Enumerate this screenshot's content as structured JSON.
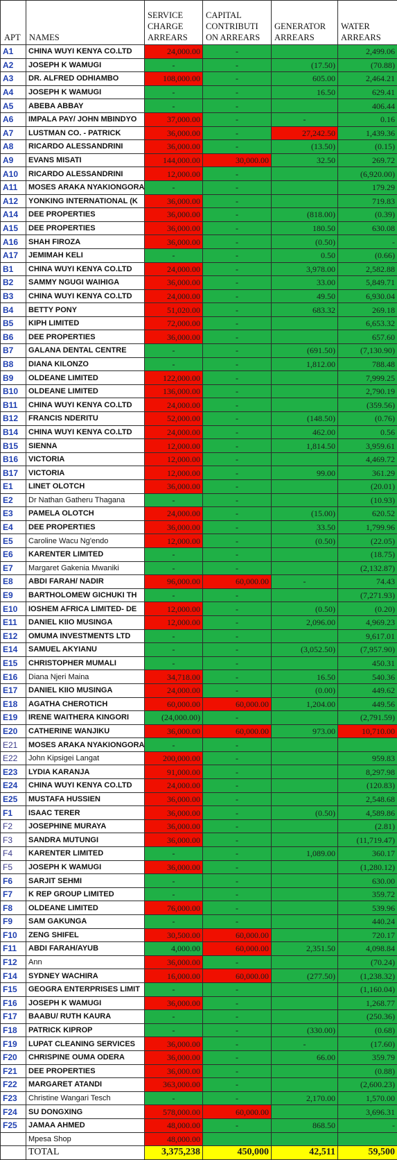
{
  "headers": {
    "apt": "APT",
    "names": "NAMES",
    "service": "SERVICE CHARGE ARREARS",
    "capital": "CAPITAL CONTRIBUTI ON ARREARS",
    "generator": "GENERATOR ARREARS",
    "water": "WATER ARREARS"
  },
  "colors": {
    "green": "#1fb046",
    "red": "#f00f00",
    "yellow": "#ffff00"
  },
  "rows": [
    {
      "apt": "A1",
      "name": "CHINA WUYI  KENYA CO.LTD",
      "sc": "24,000.00",
      "scc": "r",
      "cc": "-",
      "ccc": "g",
      "gen": "",
      "genc": "g",
      "w": "2,499.06",
      "wc": "g"
    },
    {
      "apt": "A2",
      "name": "JOSEPH K WAMUGI",
      "sc": "-",
      "scc": "g",
      "cc": "-",
      "ccc": "g",
      "gen": "(17.50)",
      "genc": "g",
      "w": "(70.88)",
      "wc": "g"
    },
    {
      "apt": "A3",
      "name": "DR. ALFRED ODHIAMBO",
      "sc": "108,000.00",
      "scc": "r",
      "cc": "-",
      "ccc": "g",
      "gen": "605.00",
      "genc": "g",
      "w": "2,464.21",
      "wc": "g"
    },
    {
      "apt": "A4",
      "name": "JOSEPH K WAMUGI",
      "sc": "-",
      "scc": "g",
      "cc": "-",
      "ccc": "g",
      "gen": "16.50",
      "genc": "g",
      "w": "629.41",
      "wc": "g"
    },
    {
      "apt": "A5",
      "name": "ABEBA ABBAY",
      "sc": "-",
      "scc": "g",
      "cc": "-",
      "ccc": "g",
      "gen": "",
      "genc": "g",
      "w": "406.44",
      "wc": "g"
    },
    {
      "apt": "A6",
      "name": "IMPALA PAY/ JOHN MBINDYO",
      "sc": "37,000.00",
      "scc": "r",
      "cc": "-",
      "ccc": "g",
      "gen": "-",
      "genc": "g",
      "w": "0.16",
      "wc": "g"
    },
    {
      "apt": "A7",
      "name": "LUSTMAN CO. - PATRICK",
      "sc": "36,000.00",
      "scc": "r",
      "cc": "-",
      "ccc": "g",
      "gen": "27,242.50",
      "genc": "r",
      "w": "1,439.36",
      "wc": "g"
    },
    {
      "apt": "A8",
      "name": "RICARDO ALESSANDRINI",
      "sc": "36,000.00",
      "scc": "r",
      "cc": "-",
      "ccc": "g",
      "gen": "(13.50)",
      "genc": "g",
      "w": "(0.15)",
      "wc": "g"
    },
    {
      "apt": "A9",
      "name": "EVANS MISATI",
      "sc": "144,000.00",
      "scc": "r",
      "cc": "30,000.00",
      "ccc": "r",
      "gen": "32.50",
      "genc": "g",
      "w": "269.72",
      "wc": "g"
    },
    {
      "apt": "A10",
      "name": "RICARDO ALESSANDRINI",
      "sc": "12,000.00",
      "scc": "r",
      "cc": "-",
      "ccc": "g",
      "gen": "",
      "genc": "g",
      "w": "(6,920.00)",
      "wc": "g"
    },
    {
      "apt": "A11",
      "name": "MOSES ARAKA NYAKIONGORA",
      "sc": "-",
      "scc": "g",
      "cc": "-",
      "ccc": "g",
      "gen": "",
      "genc": "g",
      "w": "179.29",
      "wc": "g"
    },
    {
      "apt": "A12",
      "name": "YONKING INTERNATIONAL (K",
      "sc": "36,000.00",
      "scc": "r",
      "cc": "-",
      "ccc": "g",
      "gen": "",
      "genc": "g",
      "w": "719.83",
      "wc": "g"
    },
    {
      "apt": "A14",
      "name": "DEE PROPERTIES",
      "sc": "36,000.00",
      "scc": "r",
      "cc": "-",
      "ccc": "g",
      "gen": "(818.00)",
      "genc": "g",
      "w": "(0.39)",
      "wc": "g"
    },
    {
      "apt": "A15",
      "name": "DEE PROPERTIES",
      "sc": "36,000.00",
      "scc": "r",
      "cc": "-",
      "ccc": "g",
      "gen": "180.50",
      "genc": "g",
      "w": "630.08",
      "wc": "g"
    },
    {
      "apt": "A16",
      "name": "SHAH FIROZA",
      "sc": "36,000.00",
      "scc": "r",
      "cc": "-",
      "ccc": "g",
      "gen": "(0.50)",
      "genc": "g",
      "w": "-",
      "wc": "g"
    },
    {
      "apt": "A17",
      "name": "JEMIMAH KELI",
      "sc": "-",
      "scc": "g",
      "cc": "-",
      "ccc": "g",
      "gen": "0.50",
      "genc": "g",
      "w": "(0.66)",
      "wc": "g"
    },
    {
      "apt": "B1",
      "name": "CHINA WUYI  KENYA CO.LTD",
      "sc": "24,000.00",
      "scc": "r",
      "cc": "-",
      "ccc": "g",
      "gen": "3,978.00",
      "genc": "g",
      "w": "2,582.88",
      "wc": "g"
    },
    {
      "apt": "B2",
      "name": "SAMMY NGUGI WAIHIGA",
      "sc": "36,000.00",
      "scc": "r",
      "cc": "-",
      "ccc": "g",
      "gen": "33.00",
      "genc": "g",
      "w": "5,849.71",
      "wc": "g"
    },
    {
      "apt": "B3",
      "name": "CHINA WUYI  KENYA CO.LTD",
      "sc": "24,000.00",
      "scc": "r",
      "cc": "-",
      "ccc": "g",
      "gen": "49.50",
      "genc": "g",
      "w": "6,930.04",
      "wc": "g"
    },
    {
      "apt": "B4",
      "name": "BETTY PONY",
      "sc": "51,020.00",
      "scc": "r",
      "cc": "-",
      "ccc": "g",
      "gen": "683.32",
      "genc": "g",
      "w": "269.18",
      "wc": "g"
    },
    {
      "apt": "B5",
      "name": "KIPH LIMITED",
      "sc": "72,000.00",
      "scc": "r",
      "cc": "-",
      "ccc": "g",
      "gen": "",
      "genc": "g",
      "w": "6,653.32",
      "wc": "g"
    },
    {
      "apt": "B6",
      "name": "DEE PROPERTIES",
      "sc": "36,000.00",
      "scc": "r",
      "cc": "-",
      "ccc": "g",
      "gen": "",
      "genc": "g",
      "w": "657.60",
      "wc": "g"
    },
    {
      "apt": "B7",
      "name": "GALANA DENTAL CENTRE",
      "sc": "-",
      "scc": "g",
      "cc": "-",
      "ccc": "g",
      "gen": "(691.50)",
      "genc": "g",
      "w": "(7,130.90)",
      "wc": "g"
    },
    {
      "apt": "B8",
      "name": "DIANA KILONZO",
      "sc": "-",
      "scc": "g",
      "cc": "-",
      "ccc": "g",
      "gen": "1,812.00",
      "genc": "g",
      "w": "788.48",
      "wc": "g"
    },
    {
      "apt": "B9",
      "name": "OLDEANE LIMITED",
      "sc": "122,000.00",
      "scc": "r",
      "cc": "-",
      "ccc": "g",
      "gen": "",
      "genc": "g",
      "w": "7,999.25",
      "wc": "g"
    },
    {
      "apt": "B10",
      "name": "OLDEANE LIMITED",
      "sc": "136,000.00",
      "scc": "r",
      "cc": "-",
      "ccc": "g",
      "gen": "",
      "genc": "g",
      "w": "2,790.19",
      "wc": "g"
    },
    {
      "apt": "B11",
      "name": "CHINA WUYI  KENYA CO.LTD",
      "sc": "24,000.00",
      "scc": "r",
      "cc": "-",
      "ccc": "g",
      "gen": "",
      "genc": "g",
      "w": "(359.56)",
      "wc": "g"
    },
    {
      "apt": "B12",
      "name": "FRANCIS NDERITU",
      "sc": "52,000.00",
      "scc": "r",
      "cc": "-",
      "ccc": "g",
      "gen": "(148.50)",
      "genc": "g",
      "w": "(0.76)",
      "wc": "g"
    },
    {
      "apt": "B14",
      "name": "CHINA WUYI  KENYA CO.LTD",
      "sc": "24,000.00",
      "scc": "r",
      "cc": "-",
      "ccc": "g",
      "gen": "462.00",
      "genc": "g",
      "w": "0.56",
      "wc": "g"
    },
    {
      "apt": "B15",
      "name": "SIENNA",
      "sc": "12,000.00",
      "scc": "r",
      "cc": "-",
      "ccc": "g",
      "gen": "1,814.50",
      "genc": "g",
      "w": "3,959.61",
      "wc": "g"
    },
    {
      "apt": "B16",
      "name": "VICTORIA",
      "sc": "12,000.00",
      "scc": "r",
      "cc": "-",
      "ccc": "g",
      "gen": "",
      "genc": "g",
      "w": "4,469.72",
      "wc": "g"
    },
    {
      "apt": "B17",
      "name": "VICTORIA",
      "sc": "12,000.00",
      "scc": "r",
      "cc": "-",
      "ccc": "g",
      "gen": "99.00",
      "genc": "g",
      "w": "361.29",
      "wc": "g"
    },
    {
      "apt": "E1",
      "name": "LINET OLOTCH",
      "sc": "36,000.00",
      "scc": "r",
      "cc": "-",
      "ccc": "g",
      "gen": "",
      "genc": "g",
      "w": "(20.01)",
      "wc": "g"
    },
    {
      "apt": "E2",
      "name": "Dr Nathan Gatheru Thagana",
      "sc": "-",
      "scc": "g",
      "cc": "-",
      "ccc": "g",
      "gen": "",
      "genc": "g",
      "w": "(10.93)",
      "wc": "g"
    },
    {
      "apt": "E3",
      "name": "PAMELA OLOTCH",
      "sc": "24,000.00",
      "scc": "r",
      "cc": "-",
      "ccc": "g",
      "gen": "(15.00)",
      "genc": "g",
      "w": "620.52",
      "wc": "g"
    },
    {
      "apt": "E4",
      "name": "DEE PROPERTIES",
      "sc": "36,000.00",
      "scc": "r",
      "cc": "-",
      "ccc": "g",
      "gen": "33.50",
      "genc": "g",
      "w": "1,799.96",
      "wc": "g"
    },
    {
      "apt": "E5",
      "name": "Caroline Wacu Ng'endo",
      "sc": "12,000.00",
      "scc": "r",
      "cc": "-",
      "ccc": "g",
      "gen": "(0.50)",
      "genc": "g",
      "w": "(22.05)",
      "wc": "g"
    },
    {
      "apt": "E6",
      "name": "KARENTER LIMITED",
      "sc": "-",
      "scc": "g",
      "cc": "-",
      "ccc": "g",
      "gen": "",
      "genc": "g",
      "w": "(18.75)",
      "wc": "g"
    },
    {
      "apt": "E7",
      "name": "Margaret Gakenia Mwaniki",
      "sc": "-",
      "scc": "g",
      "cc": "-",
      "ccc": "g",
      "gen": "",
      "genc": "g",
      "w": "(2,132.87)",
      "wc": "g"
    },
    {
      "apt": "E8",
      "name": "ABDI FARAH/ NADIR",
      "sc": "96,000.00",
      "scc": "r",
      "cc": "60,000.00",
      "ccc": "r",
      "gen": "-",
      "genc": "g",
      "w": "74.43",
      "wc": "g"
    },
    {
      "apt": "E9",
      "name": "BARTHOLOMEW GICHUKI TH",
      "sc": "-",
      "scc": "g",
      "cc": "-",
      "ccc": "g",
      "gen": "",
      "genc": "g",
      "w": "(7,271.93)",
      "wc": "g"
    },
    {
      "apt": "E10",
      "name": "IOSHEM AFRICA LIMITED- DE",
      "sc": "12,000.00",
      "scc": "r",
      "cc": "-",
      "ccc": "g",
      "gen": "(0.50)",
      "genc": "g",
      "w": "(0.20)",
      "wc": "g"
    },
    {
      "apt": "E11",
      "name": "DANIEL KIIO MUSINGA",
      "sc": "12,000.00",
      "scc": "r",
      "cc": "-",
      "ccc": "g",
      "gen": "2,096.00",
      "genc": "g",
      "w": "4,969.23",
      "wc": "g"
    },
    {
      "apt": "E12",
      "name": "OMUMA INVESTMENTS LTD",
      "sc": "-",
      "scc": "g",
      "cc": "-",
      "ccc": "g",
      "gen": "",
      "genc": "g",
      "w": "9,617.01",
      "wc": "g"
    },
    {
      "apt": "E14",
      "name": "SAMUEL AKYIANU",
      "sc": "-",
      "scc": "g",
      "cc": "-",
      "ccc": "g",
      "gen": "(3,052.50)",
      "genc": "g",
      "w": "(7,957.90)",
      "wc": "g"
    },
    {
      "apt": "E15",
      "name": "CHRISTOPHER MUMALI",
      "sc": "-",
      "scc": "g",
      "cc": "-",
      "ccc": "g",
      "gen": "",
      "genc": "g",
      "w": "450.31",
      "wc": "g"
    },
    {
      "apt": "E16",
      "name": "Diana Njeri Maina",
      "sc": "34,718.00",
      "scc": "r",
      "cc": "-",
      "ccc": "g",
      "gen": "16.50",
      "genc": "g",
      "w": "540.36",
      "wc": "g"
    },
    {
      "apt": "E17",
      "name": "DANIEL KIIO MUSINGA",
      "sc": "24,000.00",
      "scc": "r",
      "cc": "-",
      "ccc": "g",
      "gen": "(0.00)",
      "genc": "g",
      "w": "449.62",
      "wc": "g"
    },
    {
      "apt": "E18",
      "name": "AGATHA CHEROTICH",
      "sc": "60,000.00",
      "scc": "r",
      "cc": "60,000.00",
      "ccc": "r",
      "gen": "1,204.00",
      "genc": "g",
      "w": "449.56",
      "wc": "g"
    },
    {
      "apt": "E19",
      "name": "IRENE WAITHERA KINGORI",
      "sc": "(24,000.00)",
      "scc": "g",
      "cc": "-",
      "ccc": "g",
      "gen": "",
      "genc": "g",
      "w": "(2,791.59)",
      "wc": "g"
    },
    {
      "apt": "E20",
      "name": "CATHERINE WANJIKU",
      "sc": "36,000.00",
      "scc": "r",
      "cc": "60,000.00",
      "ccc": "r",
      "gen": "973.00",
      "genc": "g",
      "w": "10,710.00",
      "wc": "r"
    },
    {
      "apt": "E21",
      "name": "MOSES ARAKA NYAKIONGORA",
      "sc": "-",
      "scc": "g",
      "cc": "-",
      "ccc": "g",
      "gen": "",
      "genc": "g",
      "w": "",
      "wc": "g",
      "plainApt": true
    },
    {
      "apt": "E22",
      "name": "John Kipsigei Langat",
      "sc": "200,000.00",
      "scc": "r",
      "cc": "-",
      "ccc": "g",
      "gen": "",
      "genc": "g",
      "w": "959.83",
      "wc": "g",
      "plainApt": true
    },
    {
      "apt": "E23",
      "name": "LYDIA KARANJA",
      "sc": "91,000.00",
      "scc": "r",
      "cc": "-",
      "ccc": "g",
      "gen": "",
      "genc": "g",
      "w": "8,297.98",
      "wc": "g"
    },
    {
      "apt": "E24",
      "name": "CHINA WUYI  KENYA CO.LTD",
      "sc": "24,000.00",
      "scc": "r",
      "cc": "-",
      "ccc": "g",
      "gen": "",
      "genc": "g",
      "w": "(120.83)",
      "wc": "g"
    },
    {
      "apt": "E25",
      "name": "MUSTAFA HUSSIEN",
      "sc": "36,000.00",
      "scc": "r",
      "cc": "-",
      "ccc": "g",
      "gen": "",
      "genc": "g",
      "w": "2,548.68",
      "wc": "g"
    },
    {
      "apt": "F1",
      "name": "ISAAC TERER",
      "sc": "36,000.00",
      "scc": "r",
      "cc": "-",
      "ccc": "g",
      "gen": "(0.50)",
      "genc": "g",
      "w": "4,589.86",
      "wc": "g"
    },
    {
      "apt": "F2",
      "name": "JOSEPHINE MURAYA",
      "sc": "36,000.00",
      "scc": "r",
      "cc": "-",
      "ccc": "g",
      "gen": "",
      "genc": "g",
      "w": "(2.81)",
      "wc": "g",
      "plainApt": true
    },
    {
      "apt": "F3",
      "name": "SANDRA MUTUNGI",
      "sc": "36,000.00",
      "scc": "r",
      "cc": "-",
      "ccc": "g",
      "gen": "",
      "genc": "g",
      "w": "(11,719.47)",
      "wc": "g",
      "plainApt": true
    },
    {
      "apt": "F4",
      "name": "KARENTER LIMITED",
      "sc": "-",
      "scc": "g",
      "cc": "-",
      "ccc": "g",
      "gen": "1,089.00",
      "genc": "g",
      "w": "360.17",
      "wc": "g",
      "plainApt": true
    },
    {
      "apt": "F5",
      "name": "JOSEPH K WAMUGI",
      "sc": "36,000.00",
      "scc": "r",
      "cc": "-",
      "ccc": "g",
      "gen": "",
      "genc": "g",
      "w": "(1,280.12)",
      "wc": "g",
      "plainApt": true
    },
    {
      "apt": "F6",
      "name": "SARJIT SEHMI",
      "sc": "-",
      "scc": "g",
      "cc": "-",
      "ccc": "g",
      "gen": "",
      "genc": "g",
      "w": "630.00",
      "wc": "g"
    },
    {
      "apt": "F7",
      "name": "K REP GROUP LIMITED",
      "sc": "-",
      "scc": "g",
      "cc": "-",
      "ccc": "g",
      "gen": "",
      "genc": "g",
      "w": "359.72",
      "wc": "g"
    },
    {
      "apt": "F8",
      "name": "OLDEANE LIMITED",
      "sc": "76,000.00",
      "scc": "r",
      "cc": "-",
      "ccc": "g",
      "gen": "",
      "genc": "g",
      "w": "539.96",
      "wc": "g"
    },
    {
      "apt": "F9",
      "name": "SAM GAKUNGA",
      "sc": "-",
      "scc": "g",
      "cc": "-",
      "ccc": "g",
      "gen": "",
      "genc": "g",
      "w": "440.24",
      "wc": "g"
    },
    {
      "apt": "F10",
      "name": "ZENG SHIFEL",
      "sc": "30,500.00",
      "scc": "r",
      "cc": "60,000.00",
      "ccc": "r",
      "gen": "",
      "genc": "g",
      "w": "720.17",
      "wc": "g"
    },
    {
      "apt": "F11",
      "name": "ABDI FARAH/AYUB",
      "sc": "4,000.00",
      "scc": "g",
      "cc": "60,000.00",
      "ccc": "r",
      "gen": "2,351.50",
      "genc": "g",
      "w": "4,098.84",
      "wc": "g"
    },
    {
      "apt": "F12",
      "name": "Ann",
      "sc": "36,000.00",
      "scc": "r",
      "cc": "-",
      "ccc": "g",
      "gen": "",
      "genc": "g",
      "w": "(70.24)",
      "wc": "g"
    },
    {
      "apt": "F14",
      "name": "SYDNEY WACHIRA",
      "sc": "16,000.00",
      "scc": "r",
      "cc": "60,000.00",
      "ccc": "r",
      "gen": "(277.50)",
      "genc": "g",
      "w": "(1,238.32)",
      "wc": "g"
    },
    {
      "apt": "F15",
      "name": "GEOGRA ENTERPRISES LIMIT",
      "sc": "-",
      "scc": "g",
      "cc": "-",
      "ccc": "g",
      "gen": "",
      "genc": "g",
      "w": "(1,160.04)",
      "wc": "g"
    },
    {
      "apt": "F16",
      "name": "JOSEPH K WAMUGI",
      "sc": "36,000.00",
      "scc": "r",
      "cc": "-",
      "ccc": "g",
      "gen": "",
      "genc": "g",
      "w": "1,268.77",
      "wc": "g"
    },
    {
      "apt": "F17",
      "name": "BAABU/ RUTH KAURA",
      "sc": "-",
      "scc": "g",
      "cc": "-",
      "ccc": "g",
      "gen": "",
      "genc": "g",
      "w": "(250.36)",
      "wc": "g"
    },
    {
      "apt": "F18",
      "name": "PATRICK KIPROP",
      "sc": "-",
      "scc": "g",
      "cc": "-",
      "ccc": "g",
      "gen": "(330.00)",
      "genc": "g",
      "w": "(0.68)",
      "wc": "g"
    },
    {
      "apt": "F19",
      "name": "LUPAT CLEANING SERVICES",
      "sc": "36,000.00",
      "scc": "r",
      "cc": "-",
      "ccc": "g",
      "gen": "-",
      "genc": "g",
      "w": "(17.60)",
      "wc": "g"
    },
    {
      "apt": "F20",
      "name": "CHRISPINE OUMA ODERA",
      "sc": "36,000.00",
      "scc": "r",
      "cc": "-",
      "ccc": "g",
      "gen": "66.00",
      "genc": "g",
      "w": "359.79",
      "wc": "g"
    },
    {
      "apt": "F21",
      "name": "DEE PROPERTIES",
      "sc": "36,000.00",
      "scc": "r",
      "cc": "-",
      "ccc": "g",
      "gen": "",
      "genc": "g",
      "w": "(0.88)",
      "wc": "g"
    },
    {
      "apt": "F22",
      "name": "MARGARET ATANDI",
      "sc": "363,000.00",
      "scc": "r",
      "cc": "-",
      "ccc": "g",
      "gen": "",
      "genc": "g",
      "w": "(2,600.23)",
      "wc": "g"
    },
    {
      "apt": "F23",
      "name": "Christine Wangari Tesch",
      "sc": "-",
      "scc": "g",
      "cc": "-",
      "ccc": "g",
      "gen": "2,170.00",
      "genc": "g",
      "w": "1,570.00",
      "wc": "g"
    },
    {
      "apt": "F24",
      "name": "SU DONGXING",
      "sc": "578,000.00",
      "scc": "r",
      "cc": "60,000.00",
      "ccc": "r",
      "gen": "",
      "genc": "g",
      "w": "3,696.31",
      "wc": "g"
    },
    {
      "apt": "F25",
      "name": "JAMAA AHMED",
      "sc": "48,000.00",
      "scc": "r",
      "cc": "-",
      "ccc": "g",
      "gen": "868.50",
      "genc": "g",
      "w": "-",
      "wc": "g"
    },
    {
      "apt": "",
      "name": "Mpesa Shop",
      "sc": "48,000.00",
      "scc": "r",
      "cc": "",
      "ccc": "g",
      "gen": "",
      "genc": "g",
      "w": "",
      "wc": "g"
    }
  ],
  "total": {
    "label": "TOTAL",
    "service": "3,375,238",
    "capital": "450,000",
    "generator": "42,511",
    "water": "59,500"
  }
}
